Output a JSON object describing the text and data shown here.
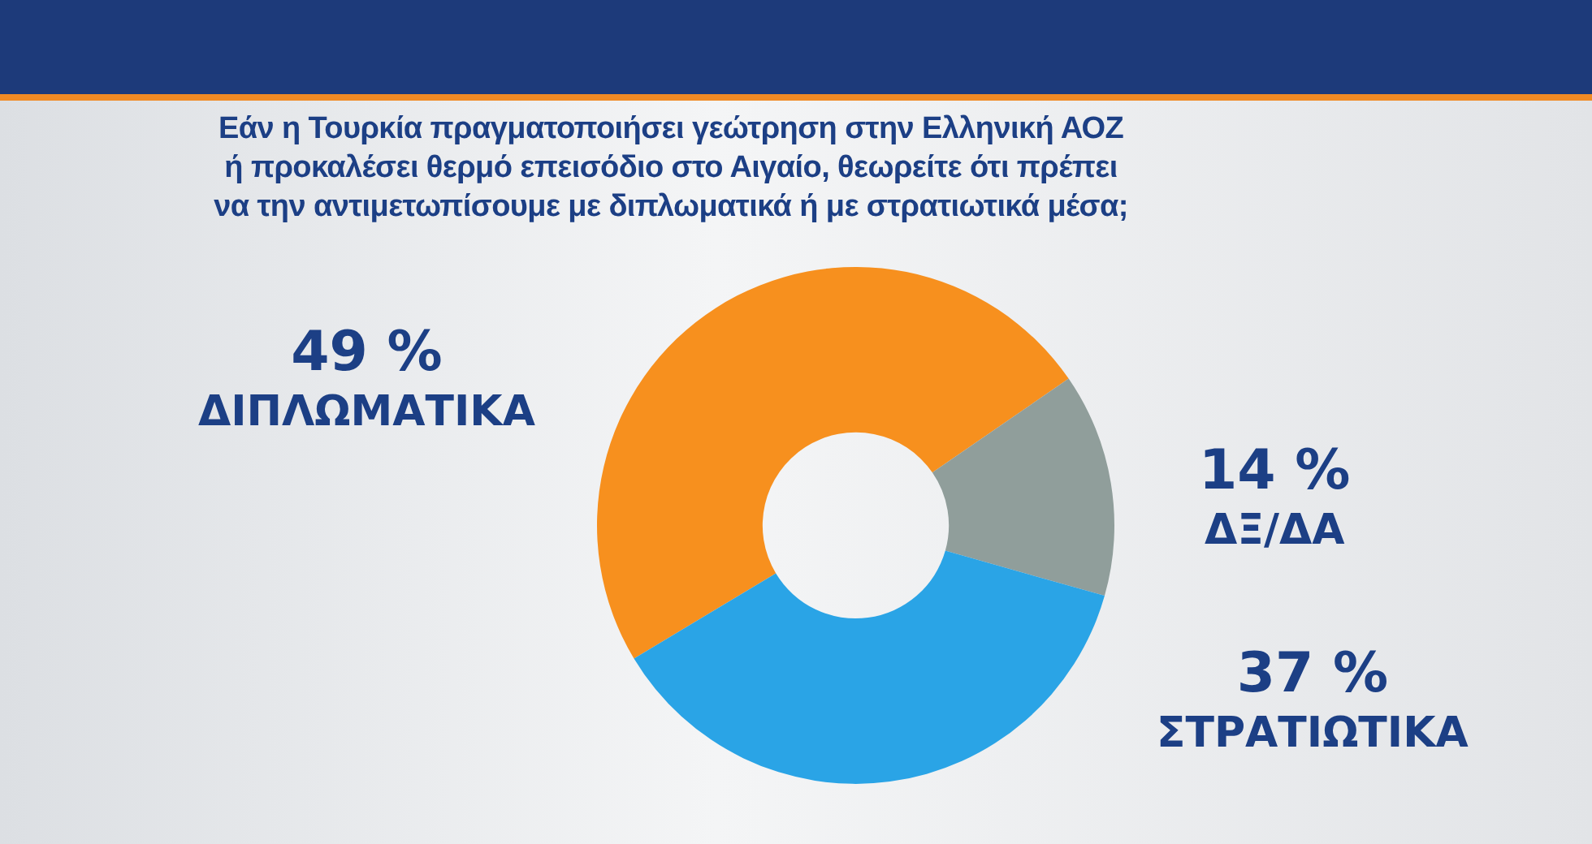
{
  "chart_data": {
    "type": "donut",
    "title": "Εάν η Τουρκία πραγματοποιήσει γεώτρηση στην Ελληνική ΑΟΖ ή προκαλέσει θερμό επεισόδιο στο Αιγαίο, θεωρείτε ότι πρέπει να την αντιμετωπίσουμε με διπλωματικά ή με στρατιωτικά μέσα;",
    "categories": [
      "ΔΙΠΛΩΜΑΤΙΚΑ",
      "ΔΞ/ΔΑ",
      "ΣΤΡΑΤΙΩΤΙΚΑ"
    ],
    "values": [
      49,
      14,
      37
    ],
    "colors": [
      "#f7901e",
      "#909e9b",
      "#2aa4e6"
    ],
    "value_labels": [
      "49 %",
      "14 %",
      "37 %"
    ],
    "legend": false
  }
}
